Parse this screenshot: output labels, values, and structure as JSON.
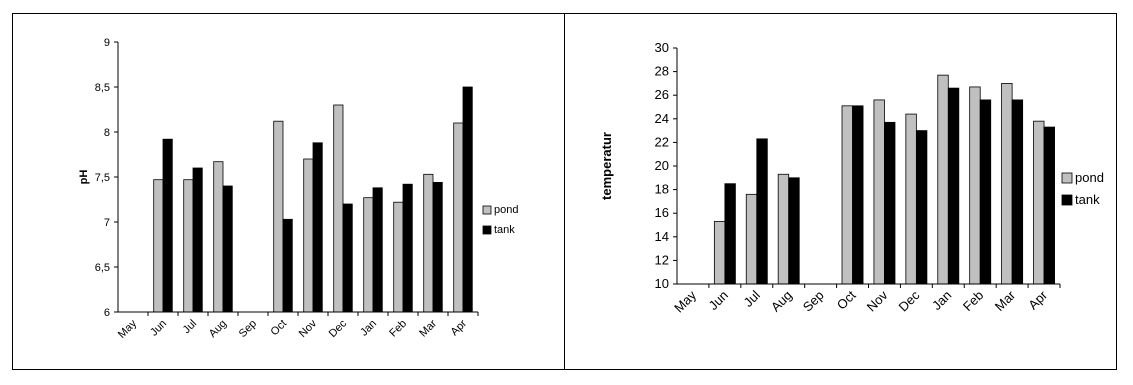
{
  "chart_data": [
    {
      "type": "bar",
      "title": "",
      "xlabel": "",
      "ylabel": "pH",
      "ylim": [
        6,
        9
      ],
      "yticks": [
        "6",
        "6,5",
        "7",
        "7,5",
        "8",
        "8,5",
        "9"
      ],
      "categories": [
        "May",
        "Jun",
        "Jul",
        "Aug",
        "Sep",
        "Oct",
        "Nov",
        "Dec",
        "Jan",
        "Feb",
        "Mar",
        "Apr"
      ],
      "series": [
        {
          "name": "pond",
          "color": "#c0c0c0",
          "values": [
            null,
            7.47,
            7.47,
            7.67,
            null,
            8.12,
            7.7,
            8.3,
            7.27,
            7.22,
            7.53,
            8.1
          ]
        },
        {
          "name": "tank",
          "color": "#000000",
          "values": [
            null,
            7.92,
            7.6,
            7.4,
            null,
            7.03,
            7.88,
            7.2,
            7.38,
            7.42,
            7.44,
            8.5
          ]
        }
      ],
      "legend": "right"
    },
    {
      "type": "bar",
      "title": "",
      "xlabel": "",
      "ylabel": "temperatur",
      "ylim": [
        10,
        30
      ],
      "yticks": [
        "10",
        "12",
        "14",
        "16",
        "18",
        "20",
        "22",
        "24",
        "26",
        "28",
        "30"
      ],
      "categories": [
        "May",
        "Jun",
        "Jul",
        "Aug",
        "Sep",
        "Oct",
        "Nov",
        "Dec",
        "Jan",
        "Feb",
        "Mar",
        "Apr"
      ],
      "series": [
        {
          "name": "pond",
          "color": "#c0c0c0",
          "values": [
            null,
            15.3,
            17.6,
            19.3,
            null,
            25.1,
            25.6,
            24.4,
            27.7,
            26.7,
            27.0,
            23.8
          ]
        },
        {
          "name": "tank",
          "color": "#000000",
          "values": [
            null,
            18.5,
            22.3,
            19.0,
            null,
            25.1,
            23.7,
            23.0,
            26.6,
            25.6,
            25.6,
            23.3
          ]
        }
      ],
      "legend": "right"
    }
  ]
}
